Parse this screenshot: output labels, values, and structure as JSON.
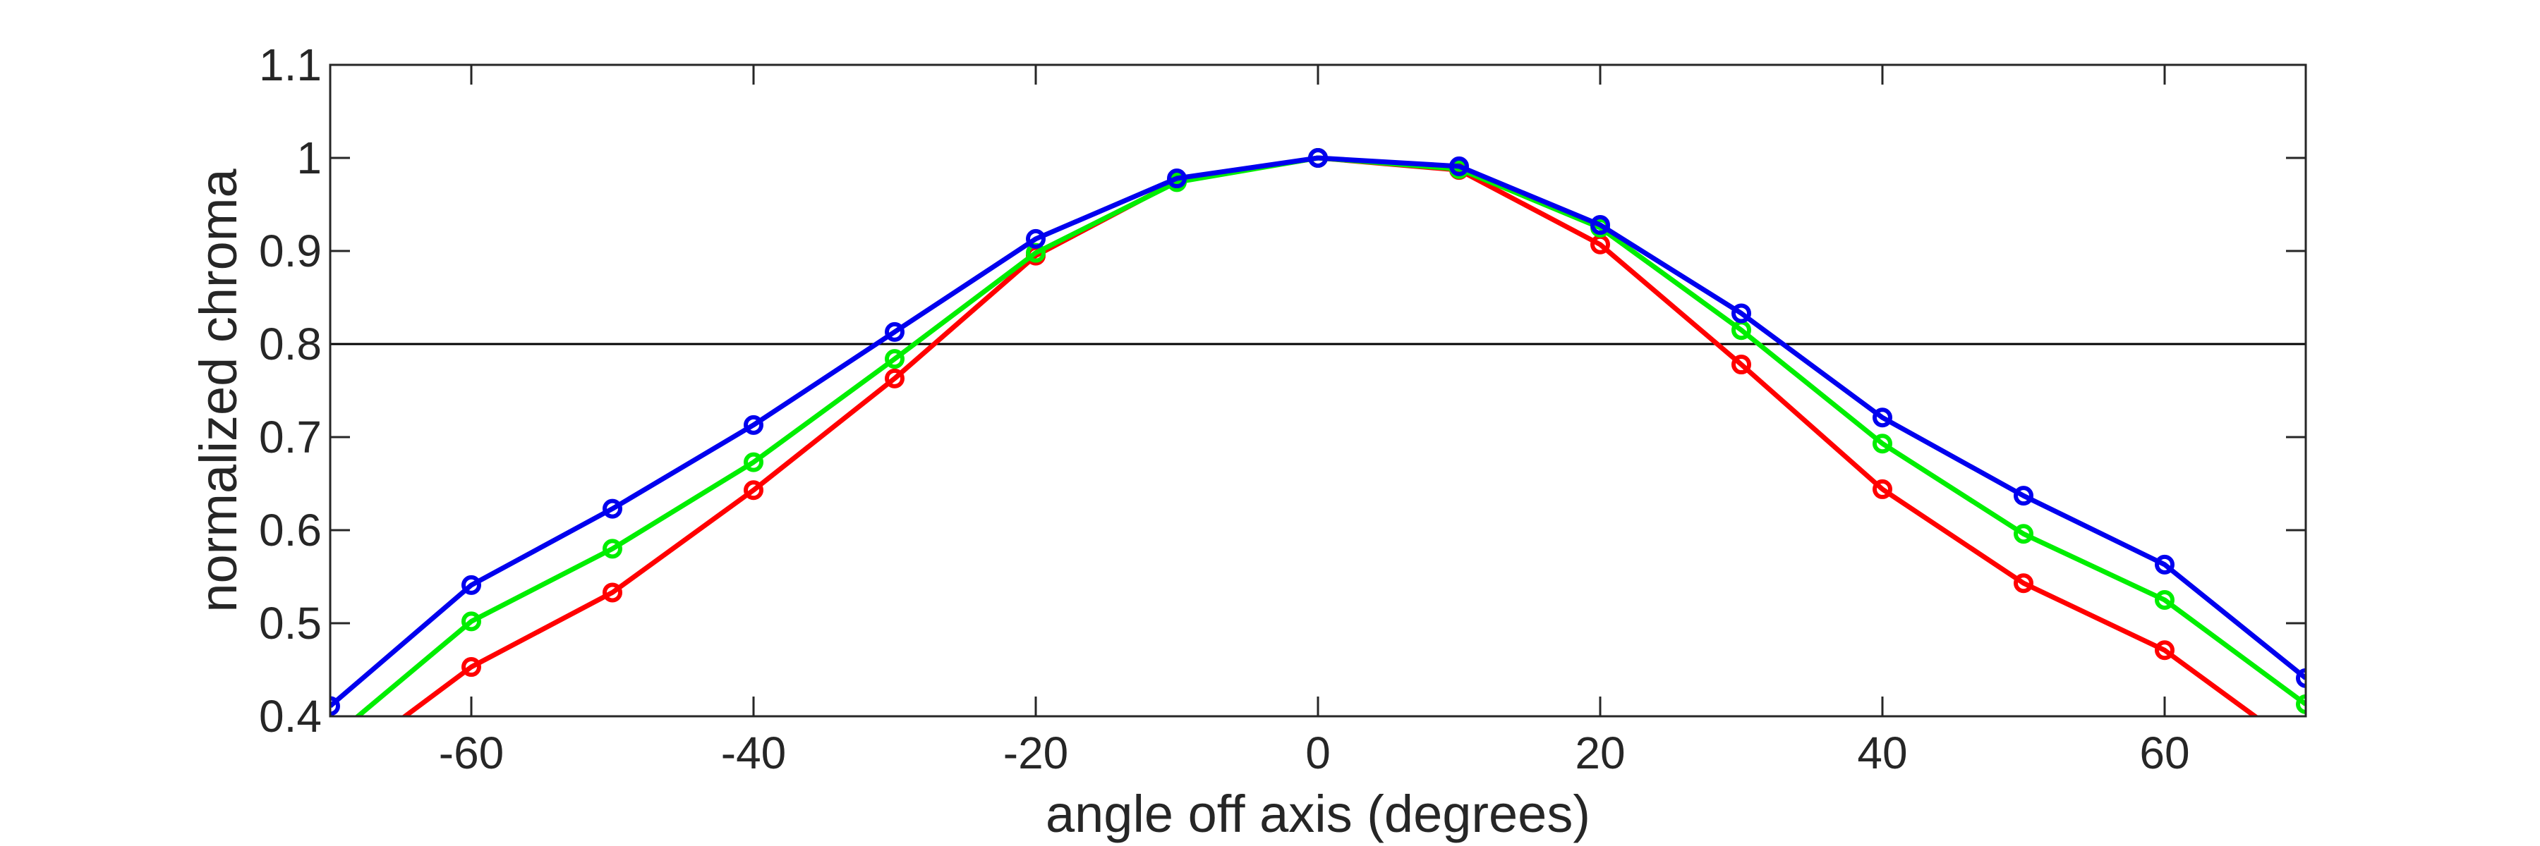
{
  "chart_data": {
    "type": "line",
    "xlabel": "angle off axis (degrees)",
    "ylabel": "normalized chroma",
    "xlim": [
      -70,
      70
    ],
    "ylim": [
      0.4,
      1.1
    ],
    "xticks": [
      -60,
      -40,
      -20,
      0,
      20,
      40,
      60
    ],
    "yticks": [
      0.4,
      0.5,
      0.6,
      0.7,
      0.8,
      0.9,
      1,
      1.1
    ],
    "ytick_labels": [
      "0.4",
      "0.5",
      "0.6",
      "0.7",
      "0.8",
      "0.9",
      "1",
      "1.1"
    ],
    "reference_line": 0.8,
    "grid": false,
    "x": [
      -70,
      -60,
      -50,
      -40,
      -30,
      -20,
      -10,
      0,
      10,
      20,
      30,
      40,
      50,
      60,
      70
    ],
    "series": [
      {
        "color": "#ff0000",
        "values": [
          0.34,
          0.453,
          0.533,
          0.643,
          0.763,
          0.895,
          0.975,
          1.0,
          0.987,
          0.907,
          0.778,
          0.644,
          0.543,
          0.471,
          0.36
        ]
      },
      {
        "color": "#00ee00",
        "values": [
          0.375,
          0.502,
          0.58,
          0.673,
          0.784,
          0.898,
          0.974,
          1.0,
          0.988,
          0.925,
          0.815,
          0.693,
          0.596,
          0.525,
          0.413
        ]
      },
      {
        "color": "#0000ee",
        "values": [
          0.411,
          0.541,
          0.623,
          0.713,
          0.813,
          0.913,
          0.978,
          1.0,
          0.991,
          0.928,
          0.833,
          0.721,
          0.637,
          0.563,
          0.441
        ]
      }
    ]
  }
}
